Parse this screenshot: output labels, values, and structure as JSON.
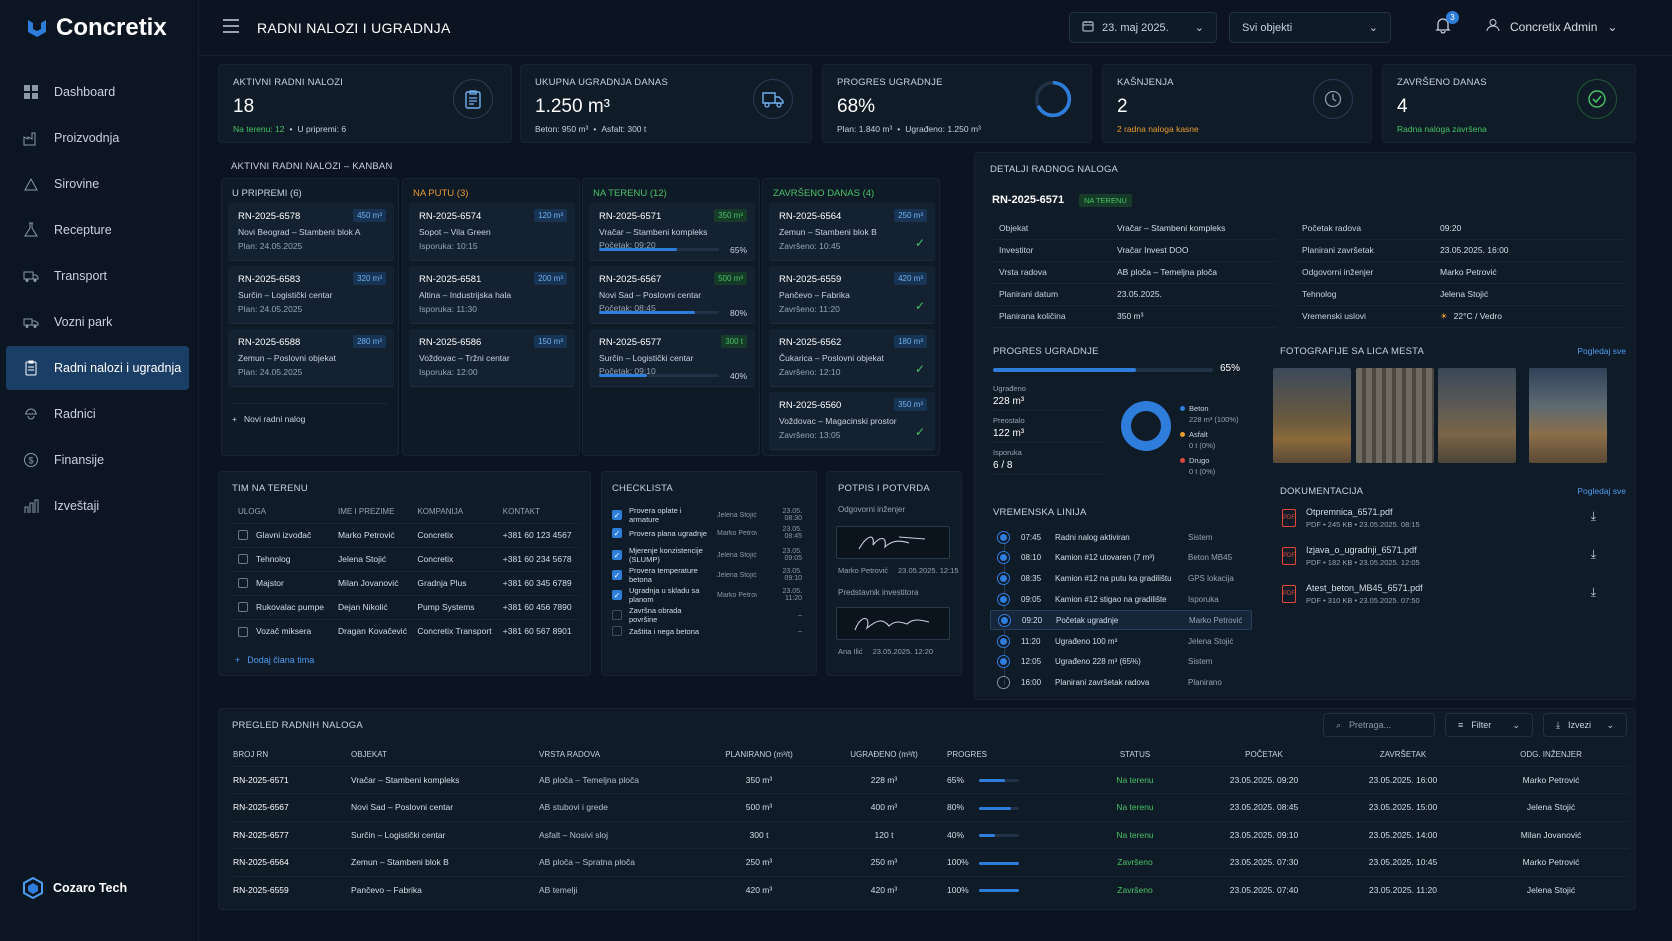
{
  "app": {
    "name": "Concretix",
    "brand": "Cozaro Tech",
    "title": "RADNI NALOZI I UGRADNJA",
    "date": "23. maj 2025.",
    "object_filter": "Svi objekti",
    "notif_count": "3",
    "user": "Concretix Admin"
  },
  "nav": [
    {
      "label": "Dashboard",
      "icon": "grid-icon"
    },
    {
      "label": "Proizvodnja",
      "icon": "factory-icon"
    },
    {
      "label": "Sirovine",
      "icon": "materials-icon"
    },
    {
      "label": "Recepture",
      "icon": "flask-icon"
    },
    {
      "label": "Transport",
      "icon": "truck-icon"
    },
    {
      "label": "Vozni park",
      "icon": "fleet-icon"
    },
    {
      "label": "Radni nalozi i ugradnja",
      "icon": "clipboard-icon"
    },
    {
      "label": "Radnici",
      "icon": "workers-icon"
    },
    {
      "label": "Finansije",
      "icon": "coin-icon"
    },
    {
      "label": "Izveštaji",
      "icon": "chart-icon"
    }
  ],
  "kpis": [
    {
      "label": "AKTIVNI RADNI NALOZI",
      "value": "18",
      "sub1": "Na terenu: 12",
      "sub2": "U pripremi: 6"
    },
    {
      "label": "UKUPNA UGRADNJA DANAS",
      "value": "1.250 m³",
      "sub1": "Beton: 950 m³",
      "sub2": "Asfalt: 300 t"
    },
    {
      "label": "PROGRES UGRADNJE",
      "value": "68%",
      "sub1": "Plan: 1.840 m³",
      "sub2": "Ugrađeno: 1.250 m³",
      "progress": 0.68
    },
    {
      "label": "KAŠNJENJA",
      "value": "2",
      "sub1": "2 radna naloga kasne",
      "sub2": ""
    },
    {
      "label": "ZAVRŠENO DANAS",
      "value": "4",
      "sub1": "Radna naloga završena",
      "sub2": ""
    }
  ],
  "kanban": {
    "title": "AKTIVNI RADNI NALOZI – KANBAN",
    "add": "Novi radni nalog",
    "columns": [
      {
        "title": "U PRIPREMI (6)",
        "color": "#c8d2de",
        "cards": [
          {
            "id": "RN-2025-6578",
            "qty": "450 m³",
            "place": "Novi Beograd – Stambeni blok A",
            "info": "Plan: 24.05.2025"
          },
          {
            "id": "RN-2025-6583",
            "qty": "320 m³",
            "place": "Surčin – Logistički centar",
            "info": "Plan: 24.05.2025"
          },
          {
            "id": "RN-2025-6588",
            "qty": "280 m³",
            "place": "Zemun – Poslovni objekat",
            "info": "Plan: 24.05.2025"
          }
        ]
      },
      {
        "title": "NA PUTU (3)",
        "color": "#e89a2f",
        "cards": [
          {
            "id": "RN-2025-6574",
            "qty": "120 m³",
            "place": "Sopot – Vila Green",
            "info": "Isporuka: 10:15"
          },
          {
            "id": "RN-2025-6581",
            "qty": "200 m³",
            "place": "Altina – Industrijska hala",
            "info": "Isporuka: 11:30"
          },
          {
            "id": "RN-2025-6586",
            "qty": "150 m³",
            "place": "Voždovac – Tržni centar",
            "info": "Isporuka: 12:00"
          }
        ]
      },
      {
        "title": "NA TERENU (12)",
        "color": "#47c265",
        "cards": [
          {
            "id": "RN-2025-6571",
            "qty": "350 m³",
            "place": "Vračar – Stambeni kompleks",
            "info": "Početak: 09:20",
            "pct": "65%",
            "p": 0.65
          },
          {
            "id": "RN-2025-6567",
            "qty": "500 m³",
            "place": "Novi Sad – Poslovni centar",
            "info": "Početak: 08:45",
            "pct": "80%",
            "p": 0.8
          },
          {
            "id": "RN-2025-6577",
            "qty": "300 t",
            "place": "Surčin – Logistički centar",
            "info": "Početak: 09:10",
            "pct": "40%",
            "p": 0.4
          }
        ]
      },
      {
        "title": "ZAVRŠENO DANAS (4)",
        "color": "#47c265",
        "cards": [
          {
            "id": "RN-2025-6564",
            "qty": "250 m³",
            "place": "Zemun – Stambeni blok B",
            "info": "Završeno: 10:45"
          },
          {
            "id": "RN-2025-6559",
            "qty": "420 m³",
            "place": "Pančevo – Fabrika",
            "info": "Završeno: 11:20"
          },
          {
            "id": "RN-2025-6562",
            "qty": "180 m³",
            "place": "Čukarica – Poslovni objekat",
            "info": "Završeno: 12:10"
          },
          {
            "id": "RN-2025-6560",
            "qty": "350 m³",
            "place": "Voždovac – Magacinski prostor",
            "info": "Završeno: 13:05"
          }
        ]
      }
    ]
  },
  "team": {
    "title": "TIM NA TERENU",
    "headers": [
      "ULOGA",
      "IME I PREZIME",
      "KOMPANIJA",
      "KONTAKT"
    ],
    "add": "Dodaj člana tima",
    "rows": [
      [
        "Glavni izvođač",
        "Marko Petrović",
        "Concretix",
        "+381 60 123 4567"
      ],
      [
        "Tehnolog",
        "Jelena Stojić",
        "Concretix",
        "+381 60 234 5678"
      ],
      [
        "Majstor",
        "Milan Jovanović",
        "Gradnja Plus",
        "+381 60 345 6789"
      ],
      [
        "Rukovalac pumpe",
        "Dejan Nikolić",
        "Pump Systems",
        "+381 60 456 7890"
      ],
      [
        "Vozač miksera",
        "Dragan Kovačević",
        "Concretix Transport",
        "+381 60 567 8901"
      ]
    ]
  },
  "checklist": {
    "title": "CHECKLISTA",
    "items": [
      {
        "label": "Provera oplate i armature",
        "who": "Jelena Stojić",
        "time": "23.05. 08:30",
        "done": true
      },
      {
        "label": "Provera plana ugradnje",
        "who": "Marko Petrović",
        "time": "23.05. 08:45",
        "done": true
      },
      {
        "label": "Mjerenje konzistencije (SLUMP)",
        "who": "Jelena Stojić",
        "time": "23.05. 09:05",
        "done": true
      },
      {
        "label": "Provera temperature betona",
        "who": "Jelena Stojić",
        "time": "23.05. 09:10",
        "done": true
      },
      {
        "label": "Ugradnja u skladu sa planom",
        "who": "Marko Petrović",
        "time": "23.05. 11:20",
        "done": true
      },
      {
        "label": "Završna obrada površine",
        "who": "",
        "time": "–",
        "done": false
      },
      {
        "label": "Zaštita i nega betona",
        "who": "",
        "time": "–",
        "done": false
      }
    ]
  },
  "signature": {
    "title": "POTPIS I POTVRDA",
    "r1": "Odgovorni inženjer",
    "n1": "Marko Petrović",
    "t1": "23.05.2025. 12:15",
    "r2": "Predstavnik investitora",
    "n2": "Ana Ilić",
    "t2": "23.05.2025. 12:20"
  },
  "details": {
    "title": "DETALJI RADNOG NALOGA",
    "id": "RN-2025-6571",
    "status": "NA TERENU",
    "left": [
      [
        "Objekat",
        "Vračar – Stambeni kompleks"
      ],
      [
        "Investitor",
        "Vračar Invest DOO"
      ],
      [
        "Vrsta radova",
        "AB ploča – Temeljna ploča"
      ],
      [
        "Planirani datum",
        "23.05.2025."
      ],
      [
        "Planirana količina",
        "350 m³"
      ]
    ],
    "right": [
      [
        "Početak radova",
        "09:20"
      ],
      [
        "Planirani završetak",
        "23.05.2025. 16:00"
      ],
      [
        "Odgovorni inženjer",
        "Marko Petrović"
      ],
      [
        "Tehnolog",
        "Jelena Stojić"
      ],
      [
        "Vremenski uslovi",
        "22°C / Vedro"
      ]
    ]
  },
  "progress": {
    "title": "PROGRES UGRADNJE",
    "pct": "65%",
    "p": 0.65,
    "stats": [
      [
        "Ugrađeno",
        "228 m³"
      ],
      [
        "Preostalo",
        "122 m³"
      ],
      [
        "Isporuka",
        "6 / 8"
      ]
    ],
    "legend": [
      {
        "name": "Beton",
        "val": "228 m³ (100%)",
        "color": "#2f7ddb"
      },
      {
        "name": "Asfalt",
        "val": "0 t (0%)",
        "color": "#e89a2f"
      },
      {
        "name": "Drugo",
        "val": "0 t (0%)",
        "color": "#e0483c"
      }
    ]
  },
  "photos": {
    "title": "FOTOGRAFIJE SA LICA MESTA",
    "link": "Pogledaj sve"
  },
  "docs": {
    "title": "DOKUMENTACIJA",
    "link": "Pogledaj sve",
    "items": [
      {
        "name": "Otpremnica_6571.pdf",
        "meta": "PDF • 245 KB • 23.05.2025. 08:15"
      },
      {
        "name": "Izjava_o_ugradnji_6571.pdf",
        "meta": "PDF • 182 KB • 23.05.2025. 12:05"
      },
      {
        "name": "Atest_beton_MB45_6571.pdf",
        "meta": "PDF • 310 KB • 23.05.2025. 07:50"
      }
    ]
  },
  "timeline": {
    "title": "VREMENSKA LINIJA",
    "items": [
      {
        "time": "07:45",
        "event": "Radni nalog aktiviran",
        "who": "Sistem"
      },
      {
        "time": "08:10",
        "event": "Kamion #12 utovaren (7 m³)",
        "who": "Beton MB45"
      },
      {
        "time": "08:35",
        "event": "Kamion #12 na putu ka gradilištu",
        "who": "GPS lokacija"
      },
      {
        "time": "09:05",
        "event": "Kamion #12 stigao na gradilište",
        "who": "Isporuka"
      },
      {
        "time": "09:20",
        "event": "Početak ugradnje",
        "who": "Marko Petrović"
      },
      {
        "time": "11:20",
        "event": "Ugrađeno 100 m³",
        "who": "Jelena Stojić"
      },
      {
        "time": "12:05",
        "event": "Ugrađeno 228 m³ (65%)",
        "who": "Sistem"
      },
      {
        "time": "16:00",
        "event": "Planirani završetak radova",
        "who": "Planirano"
      }
    ]
  },
  "overview": {
    "title": "PREGLED RADNIH NALOGA",
    "search": "Pretraga...",
    "filter": "Filter",
    "export": "Izvezi",
    "headers": [
      "BROJ RN",
      "OBJEKAT",
      "VRSTA RADOVA",
      "PLANIRANO (m³/t)",
      "UGRAĐENO (m³/t)",
      "PROGRES",
      "STATUS",
      "POČETAK",
      "ZAVRŠETAK",
      "ODG. INŽENJER"
    ],
    "rows": [
      {
        "id": "RN-2025-6571",
        "obj": "Vračar – Stambeni kompleks",
        "type": "AB ploča – Temeljna ploča",
        "plan": "350 m³",
        "done": "228 m³",
        "pct": "65%",
        "p": 0.65,
        "status": "Na terenu",
        "start": "23.05.2025. 09:20",
        "end": "23.05.2025. 16:00",
        "eng": "Marko Petrović"
      },
      {
        "id": "RN-2025-6567",
        "obj": "Novi Sad – Poslovni centar",
        "type": "AB stubovi i grede",
        "plan": "500 m³",
        "done": "400 m³",
        "pct": "80%",
        "p": 0.8,
        "status": "Na terenu",
        "start": "23.05.2025. 08:45",
        "end": "23.05.2025. 15:00",
        "eng": "Jelena Stojić"
      },
      {
        "id": "RN-2025-6577",
        "obj": "Surčin – Logistički centar",
        "type": "Asfalt – Nosivi sloj",
        "plan": "300 t",
        "done": "120 t",
        "pct": "40%",
        "p": 0.4,
        "status": "Na terenu",
        "start": "23.05.2025. 09:10",
        "end": "23.05.2025. 14:00",
        "eng": "Milan Jovanović"
      },
      {
        "id": "RN-2025-6564",
        "obj": "Zemun – Stambeni blok B",
        "type": "AB ploča – Spratna ploča",
        "plan": "250 m³",
        "done": "250 m³",
        "pct": "100%",
        "p": 1,
        "status": "Završeno",
        "start": "23.05.2025. 07:30",
        "end": "23.05.2025. 10:45",
        "eng": "Marko Petrović"
      },
      {
        "id": "RN-2025-6559",
        "obj": "Pančevo – Fabrika",
        "type": "AB temelji",
        "plan": "420 m³",
        "done": "420 m³",
        "pct": "100%",
        "p": 1,
        "status": "Završeno",
        "start": "23.05.2025. 07:40",
        "end": "23.05.2025. 11:20",
        "eng": "Jelena Stojić"
      }
    ]
  }
}
